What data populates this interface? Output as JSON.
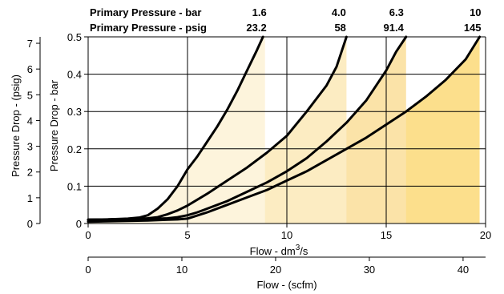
{
  "chart_data": {
    "type": "line",
    "header": {
      "row1_label": "Primary Pressure - bar",
      "row2_label": "Primary Pressure - psig"
    },
    "x": {
      "label": "Flow - dm",
      "label_sup": "3",
      "label_tail": "/s",
      "range": [
        0,
        20
      ],
      "ticks": [
        0,
        5,
        10,
        15,
        20
      ],
      "tick_labels": [
        "0",
        "5",
        "10",
        "15",
        "20"
      ]
    },
    "x2": {
      "label": "Flow - (scfm)",
      "range": [
        0,
        42.4
      ],
      "ticks": [
        0,
        10,
        20,
        30,
        40
      ],
      "tick_labels": [
        "0",
        "10",
        "20",
        "30",
        "40"
      ]
    },
    "y": {
      "label": "Pressure Drop - bar",
      "range": [
        0,
        0.5
      ],
      "ticks": [
        0,
        0.1,
        0.2,
        0.3,
        0.4,
        0.5
      ],
      "tick_labels": [
        "0",
        "0.1",
        "0.2",
        "0.3",
        "0.4",
        "0.5"
      ]
    },
    "y2": {
      "label": "Pressure Drop - (psig)",
      "range": [
        0,
        7.25
      ],
      "ticks": [
        0,
        1,
        2,
        3,
        4,
        5,
        6,
        7
      ],
      "tick_labels": [
        "0",
        "1",
        "2",
        "3",
        "4",
        "5",
        "6",
        "7"
      ]
    },
    "grid": true,
    "series": [
      {
        "bar": "1.6",
        "psig": "23.2",
        "fill": "#fdf4dc",
        "x_end": 8.9,
        "points": [
          [
            0,
            0.01
          ],
          [
            1,
            0.011
          ],
          [
            2,
            0.013
          ],
          [
            2.6,
            0.016
          ],
          [
            3,
            0.022
          ],
          [
            3.5,
            0.04
          ],
          [
            4,
            0.065
          ],
          [
            4.5,
            0.1
          ],
          [
            5,
            0.145
          ],
          [
            5.5,
            0.18
          ],
          [
            6,
            0.22
          ],
          [
            6.5,
            0.26
          ],
          [
            7,
            0.305
          ],
          [
            7.5,
            0.355
          ],
          [
            8,
            0.41
          ],
          [
            8.5,
            0.465
          ],
          [
            8.8,
            0.5
          ]
        ]
      },
      {
        "bar": "4.0",
        "psig": "58",
        "fill": "#fcecc2",
        "x_end": 12.9,
        "points": [
          [
            0,
            0.01
          ],
          [
            2,
            0.012
          ],
          [
            3,
            0.014
          ],
          [
            3.5,
            0.017
          ],
          [
            4,
            0.025
          ],
          [
            4.5,
            0.035
          ],
          [
            5,
            0.048
          ],
          [
            6,
            0.08
          ],
          [
            7,
            0.115
          ],
          [
            8,
            0.15
          ],
          [
            9,
            0.19
          ],
          [
            10,
            0.235
          ],
          [
            11,
            0.3
          ],
          [
            12,
            0.37
          ],
          [
            12.5,
            0.42
          ],
          [
            13,
            0.5
          ]
        ]
      },
      {
        "bar": "6.3",
        "psig": "91.4",
        "fill": "#fbe3a8",
        "x_end": 15.8,
        "points": [
          [
            0,
            0.01
          ],
          [
            3,
            0.012
          ],
          [
            4,
            0.014
          ],
          [
            4.5,
            0.017
          ],
          [
            5,
            0.022
          ],
          [
            5.5,
            0.03
          ],
          [
            6,
            0.04
          ],
          [
            7,
            0.06
          ],
          [
            8,
            0.085
          ],
          [
            9,
            0.11
          ],
          [
            10,
            0.14
          ],
          [
            11,
            0.175
          ],
          [
            12,
            0.22
          ],
          [
            13,
            0.27
          ],
          [
            14,
            0.33
          ],
          [
            15,
            0.41
          ],
          [
            15.5,
            0.46
          ],
          [
            16,
            0.5
          ]
        ]
      },
      {
        "bar": "10",
        "psig": "145",
        "fill": "#fcdf8c",
        "x_end": 19.7,
        "points": [
          [
            0,
            0.005
          ],
          [
            3,
            0.008
          ],
          [
            4,
            0.01
          ],
          [
            4.5,
            0.011
          ],
          [
            5,
            0.013
          ],
          [
            6,
            0.03
          ],
          [
            7,
            0.05
          ],
          [
            8,
            0.07
          ],
          [
            9,
            0.09
          ],
          [
            10,
            0.115
          ],
          [
            11,
            0.14
          ],
          [
            12,
            0.17
          ],
          [
            13,
            0.2
          ],
          [
            14,
            0.23
          ],
          [
            15,
            0.265
          ],
          [
            16,
            0.3
          ],
          [
            17,
            0.34
          ],
          [
            18,
            0.385
          ],
          [
            19,
            0.44
          ],
          [
            19.7,
            0.5
          ]
        ]
      }
    ]
  }
}
